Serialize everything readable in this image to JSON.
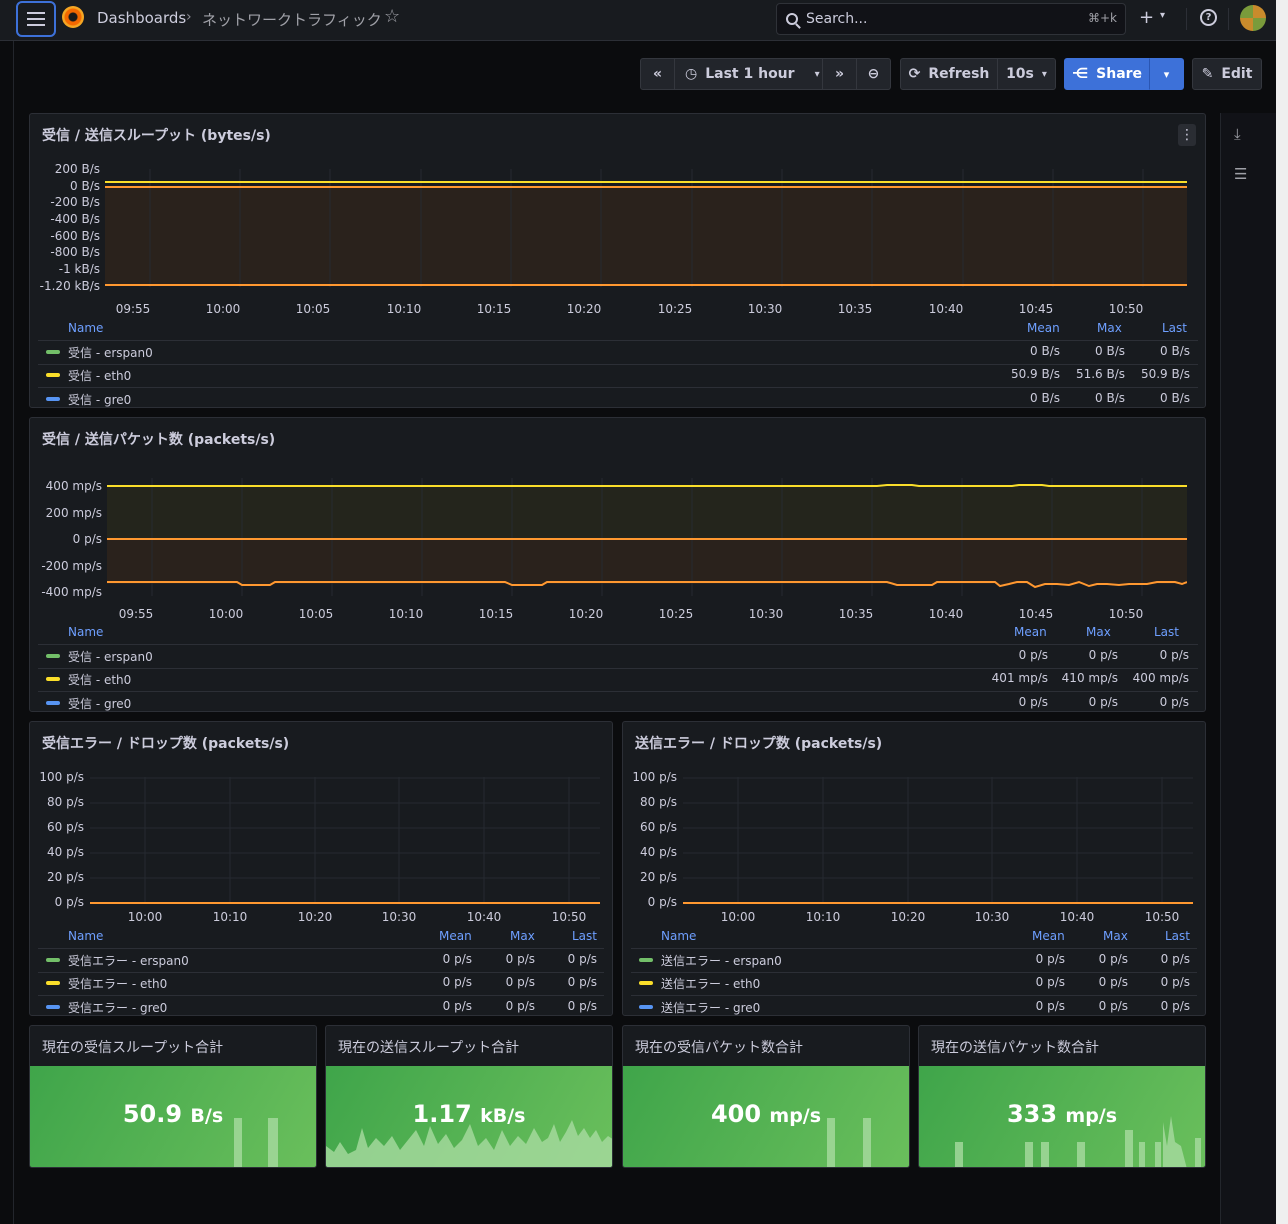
{
  "topbar": {
    "breadcrumb_root": "Dashboards",
    "breadcrumb_sep": "›",
    "breadcrumb_page": "ネットワークトラフィック",
    "search_placeholder": "Search...",
    "search_shortcut": "⌘+k"
  },
  "toolbar": {
    "time_range": "Last 1 hour",
    "refresh_label": "Refresh",
    "refresh_interval": "10s",
    "share_label": "Share",
    "edit_label": "Edit"
  },
  "legend_headers": {
    "name": "Name",
    "mean": "Mean",
    "max": "Max",
    "last": "Last"
  },
  "colors": {
    "erspan0": "#73bf69",
    "eth0": "#fade2a",
    "gre0": "#5794f2",
    "accent": "#3d71d9",
    "stat_bg": "#56b14f"
  },
  "panels": [
    {
      "title": "受信 / 送信スループット (bytes/s)",
      "y_ticks": [
        "200 B/s",
        "0 B/s",
        "-200 B/s",
        "-400 B/s",
        "-600 B/s",
        "-800 B/s",
        "-1 kB/s",
        "-1.20 kB/s"
      ],
      "x_ticks": [
        "09:55",
        "10:00",
        "10:05",
        "10:10",
        "10:15",
        "10:20",
        "10:25",
        "10:30",
        "10:35",
        "10:40",
        "10:45",
        "10:50"
      ],
      "legend": [
        {
          "name": "受信 - erspan0",
          "mean": "0 B/s",
          "max": "0 B/s",
          "last": "0 B/s"
        },
        {
          "name": "受信 - eth0",
          "mean": "50.9 B/s",
          "max": "51.6 B/s",
          "last": "50.9 B/s"
        },
        {
          "name": "受信 - gre0",
          "mean": "0 B/s",
          "max": "0 B/s",
          "last": "0 B/s"
        }
      ]
    },
    {
      "title": "受信 / 送信パケット数 (packets/s)",
      "y_ticks": [
        "400 mp/s",
        "200 mp/s",
        "0 p/s",
        "-200 mp/s",
        "-400 mp/s"
      ],
      "x_ticks": [
        "09:55",
        "10:00",
        "10:05",
        "10:10",
        "10:15",
        "10:20",
        "10:25",
        "10:30",
        "10:35",
        "10:40",
        "10:45",
        "10:50"
      ],
      "legend": [
        {
          "name": "受信 - erspan0",
          "mean": "0 p/s",
          "max": "0 p/s",
          "last": "0 p/s"
        },
        {
          "name": "受信 - eth0",
          "mean": "401 mp/s",
          "max": "410 mp/s",
          "last": "400 mp/s"
        },
        {
          "name": "受信 - gre0",
          "mean": "0 p/s",
          "max": "0 p/s",
          "last": "0 p/s"
        }
      ]
    },
    {
      "title": "受信エラー / ドロップ数 (packets/s)",
      "y_ticks": [
        "100 p/s",
        "80 p/s",
        "60 p/s",
        "40 p/s",
        "20 p/s",
        "0 p/s"
      ],
      "x_ticks": [
        "10:00",
        "10:10",
        "10:20",
        "10:30",
        "10:40",
        "10:50"
      ],
      "legend": [
        {
          "name": "受信エラー - erspan0",
          "mean": "0 p/s",
          "max": "0 p/s",
          "last": "0 p/s"
        },
        {
          "name": "受信エラー - eth0",
          "mean": "0 p/s",
          "max": "0 p/s",
          "last": "0 p/s"
        },
        {
          "name": "受信エラー - gre0",
          "mean": "0 p/s",
          "max": "0 p/s",
          "last": "0 p/s"
        }
      ]
    },
    {
      "title": "送信エラー / ドロップ数 (packets/s)",
      "y_ticks": [
        "100 p/s",
        "80 p/s",
        "60 p/s",
        "40 p/s",
        "20 p/s",
        "0 p/s"
      ],
      "x_ticks": [
        "10:00",
        "10:10",
        "10:20",
        "10:30",
        "10:40",
        "10:50"
      ],
      "legend": [
        {
          "name": "送信エラー - erspan0",
          "mean": "0 p/s",
          "max": "0 p/s",
          "last": "0 p/s"
        },
        {
          "name": "送信エラー - eth0",
          "mean": "0 p/s",
          "max": "0 p/s",
          "last": "0 p/s"
        },
        {
          "name": "送信エラー - gre0",
          "mean": "0 p/s",
          "max": "0 p/s",
          "last": "0 p/s"
        }
      ]
    }
  ],
  "stats": [
    {
      "title": "現在の受信スループット合計",
      "value": "50.9",
      "unit": "B/s"
    },
    {
      "title": "現在の送信スループット合計",
      "value": "1.17",
      "unit": "kB/s"
    },
    {
      "title": "現在の受信パケット数合計",
      "value": "400",
      "unit": "mp/s"
    },
    {
      "title": "現在の送信パケット数合計",
      "value": "333",
      "unit": "mp/s"
    }
  ]
}
